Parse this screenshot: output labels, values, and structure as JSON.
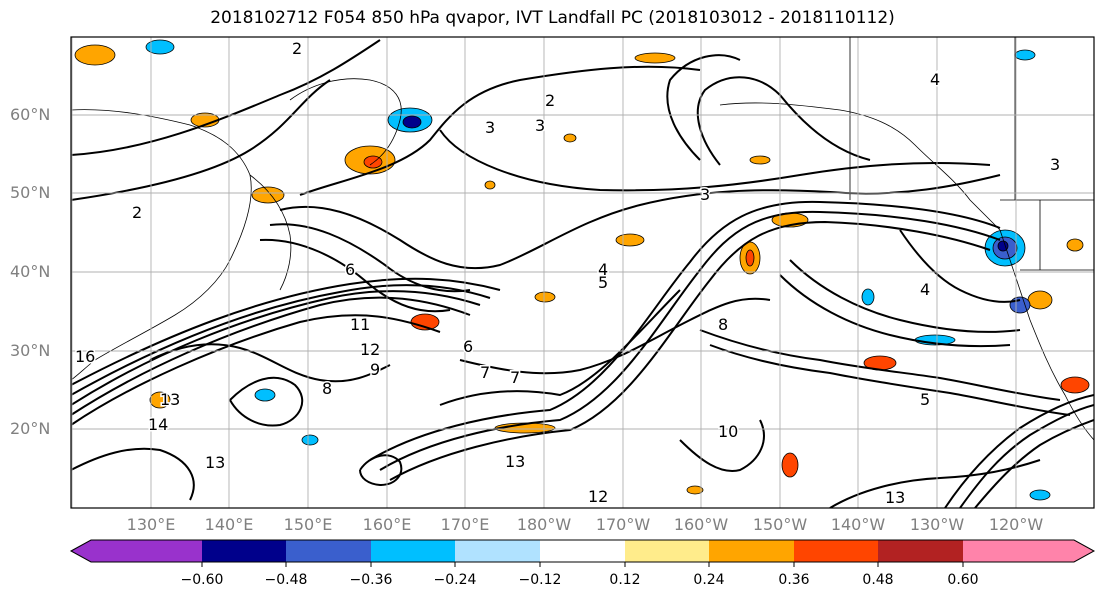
{
  "title": "2018102712 F054 850 hPa qvapor, IVT Landfall PC (2018103012 - 2018110112)",
  "lat_labels": [
    "60°N",
    "50°N",
    "40°N",
    "30°N",
    "20°N"
  ],
  "lon_labels": [
    "130°E",
    "140°E",
    "150°E",
    "160°E",
    "170°E",
    "180°W",
    "170°W",
    "160°W",
    "150°W",
    "140°W",
    "130°W",
    "120°W"
  ],
  "colorbar": {
    "ticks": [
      "−0.60",
      "−0.48",
      "−0.36",
      "−0.24",
      "−0.12",
      "0.12",
      "0.24",
      "0.36",
      "0.48",
      "0.60"
    ],
    "colors": [
      "#9932cc",
      "#00008b",
      "#3a5fcd",
      "#00bfff",
      "#b0e2ff",
      "#ffffff",
      "#ffec8b",
      "#ffa500",
      "#ff4500",
      "#b22222",
      "#ff83aa"
    ]
  },
  "contour_labels": [
    "2",
    "2",
    "2",
    "3",
    "3",
    "3",
    "3",
    "4",
    "4",
    "4",
    "5",
    "5",
    "6",
    "6",
    "7",
    "7",
    "8",
    "8",
    "9",
    "10",
    "11",
    "12",
    "12",
    "13",
    "13",
    "13",
    "13",
    "14",
    "16"
  ]
}
